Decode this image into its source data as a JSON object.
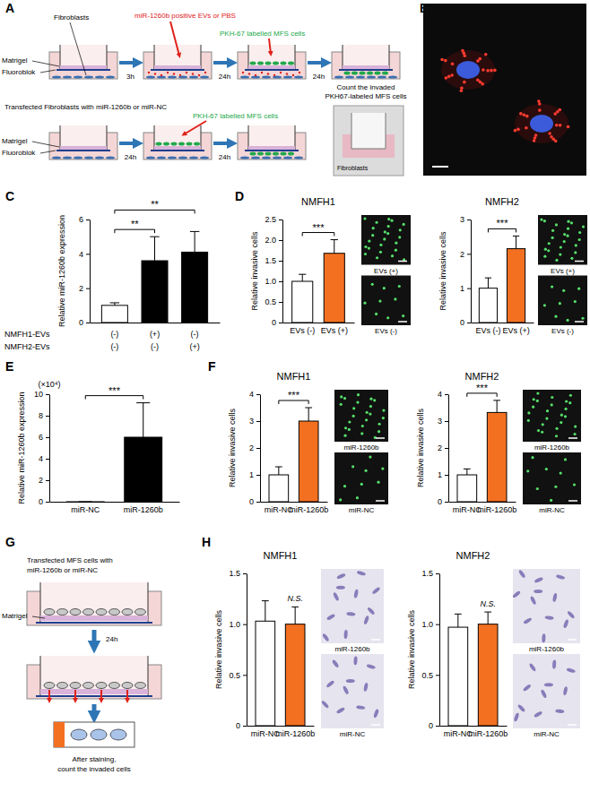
{
  "panel_labels": [
    "A",
    "B",
    "C",
    "D",
    "E",
    "F",
    "G",
    "H"
  ],
  "chart_data": [
    {
      "type": "bar",
      "categories": [
        null,
        null,
        null
      ],
      "values": [
        1.0,
        3.6,
        4.1
      ],
      "errors": [
        0.15,
        1.4,
        1.2
      ],
      "colors": [
        "#ffffff",
        "#000000",
        "#000000"
      ],
      "ylabel": "Relative miR-1260b expression",
      "ylim": [
        0,
        6
      ],
      "yticks": [
        0,
        2,
        4,
        6
      ],
      "annotations": [
        {
          "text": "**",
          "between": [
            0,
            1
          ]
        },
        {
          "text": "**",
          "between": [
            0,
            2
          ]
        }
      ],
      "table": [
        {
          "label": "NMFH1-EVs",
          "cells": [
            "(-)",
            "(+)",
            "(-)"
          ]
        },
        {
          "label": "NMFH2-EVs",
          "cells": [
            "(-)",
            "(-)",
            "(+)"
          ]
        }
      ]
    },
    {
      "type": "bar",
      "title": "NMFH1",
      "categories": [
        "EVs (-)",
        "EVs (+)"
      ],
      "values": [
        1.0,
        1.68
      ],
      "errors": [
        0.17,
        0.33
      ],
      "colors": [
        "#ffffff",
        "#f37021"
      ],
      "ylabel": "Relative invasive cells",
      "ylim": [
        0,
        2.5
      ],
      "yticks": [
        0,
        0.5,
        {
          "value": 1,
          "label": "1.0"
        },
        1.5,
        {
          "value": 2,
          "label": "2.0"
        },
        2.5
      ],
      "annotations": [
        {
          "text": "***",
          "between": [
            0,
            1
          ]
        }
      ]
    },
    {
      "type": "bar",
      "title": "NMFH2",
      "categories": [
        "EVs (-)",
        "EVs (+)"
      ],
      "values": [
        1.0,
        2.15
      ],
      "errors": [
        0.3,
        0.37
      ],
      "colors": [
        "#ffffff",
        "#f37021"
      ],
      "ylabel": "Relative invasive cells",
      "ylim": [
        0,
        3
      ],
      "yticks": [
        0,
        1,
        2,
        3
      ],
      "annotations": [
        {
          "text": "***",
          "between": [
            0,
            1
          ]
        }
      ]
    },
    {
      "type": "bar",
      "categories": [
        "miR-NC",
        "miR-1260b"
      ],
      "values": [
        0.0001,
        6.0
      ],
      "errors": [
        0,
        3.2
      ],
      "colors": [
        "#000000",
        "#000000"
      ],
      "ylabel": "Relative miR-1260b expression",
      "ylim": [
        0,
        10
      ],
      "yticks": [
        0,
        2,
        4,
        6,
        8,
        10
      ],
      "annotations": [
        {
          "text": "(×10⁴)"
        },
        {
          "text": "***",
          "between": [
            0,
            1
          ]
        }
      ]
    },
    {
      "type": "bar",
      "title": "NMFH1",
      "categories": [
        "miR-NC",
        "miR-1260b"
      ],
      "values": [
        1.0,
        3.0
      ],
      "errors": [
        0.3,
        0.5
      ],
      "colors": [
        "#ffffff",
        "#f37021"
      ],
      "ylabel": "Relative invasive cells",
      "ylim": [
        0,
        4
      ],
      "yticks": [
        0,
        1,
        2,
        3,
        4
      ],
      "annotations": [
        {
          "text": "***",
          "between": [
            0,
            1
          ]
        }
      ]
    },
    {
      "type": "bar",
      "title": "NMFH2",
      "categories": [
        "miR-NC",
        "miR-1260b"
      ],
      "values": [
        1.0,
        3.32
      ],
      "errors": [
        0.22,
        0.45
      ],
      "colors": [
        "#ffffff",
        "#f37021"
      ],
      "ylabel": "Relative invasive cells",
      "ylim": [
        0,
        4
      ],
      "yticks": [
        0,
        1,
        2,
        3,
        4
      ],
      "annotations": [
        {
          "text": "***",
          "between": [
            0,
            1
          ]
        }
      ]
    },
    {
      "type": "bar",
      "title": "NMFH1",
      "categories": [
        "miR-NC",
        "miR-1260b"
      ],
      "values": [
        1.03,
        1.0
      ],
      "errors": [
        0.2,
        0.17
      ],
      "colors": [
        "#ffffff",
        "#f37021"
      ],
      "ylabel": "Relative invasive cells",
      "ylim": [
        0,
        1.5
      ],
      "yticks": [
        0,
        0.5,
        {
          "value": 1,
          "label": "1.0"
        },
        1.5
      ],
      "annotations": [
        {
          "text": "N.S.",
          "at": 1
        }
      ]
    },
    {
      "type": "bar",
      "title": "NMFH2",
      "categories": [
        "miR-NC",
        "miR-1260b"
      ],
      "values": [
        0.97,
        1.0
      ],
      "errors": [
        0.13,
        0.12
      ],
      "colors": [
        "#ffffff",
        "#f37021"
      ],
      "ylabel": "Relative invasive cells",
      "ylim": [
        0,
        1.5
      ],
      "yticks": [
        0,
        0.5,
        {
          "value": 1,
          "label": "1.0"
        },
        1.5
      ],
      "annotations": [
        {
          "text": "N.S.",
          "at": 1
        }
      ]
    }
  ],
  "micrographs": [
    {
      "captions": [
        "EVs (+)",
        "EVs (-)"
      ]
    },
    {
      "captions": [
        "EVs (+)",
        "EVs (-)"
      ]
    },
    {
      "captions": [
        "miR-1260b",
        "miR-NC"
      ]
    },
    {
      "captions": [
        "miR-1260b",
        "miR-NC"
      ]
    },
    {
      "captions": [
        "miR-1260b",
        "miR-NC"
      ]
    },
    {
      "captions": [
        "miR-1260b",
        "miR-NC"
      ]
    }
  ],
  "diagram_a": {
    "fibroblasts": "Fibroblasts",
    "matrigel": "Matrigel",
    "fluoroblok": "Fluoroblok",
    "evs": "miR-1260b positive EVs or PBS",
    "cells": "PKH-67 labelled MFS cells",
    "times": [
      "3h",
      "24h",
      "24h"
    ],
    "transfected": "Transfected Fibroblasts with miR-1260b or miR-NC",
    "matrigel_2": "Matrigel",
    "fluoroblok_2": "Fluoroblok",
    "cells_2": "PKH-67 labelled MFS cells",
    "times_2": [
      "24h",
      "24h"
    ],
    "count": [
      "Count the invaded",
      "PKH67-labeled MFS cells"
    ],
    "photo_label": "Fibroblasts"
  },
  "diagram_g": {
    "transfected": [
      "Transfected MFS cells with",
      "miR-1260b or miR-NC"
    ],
    "matrigel": "Matrigel",
    "time": "24h",
    "count": [
      "After staining,",
      "count the invaded cells"
    ]
  }
}
